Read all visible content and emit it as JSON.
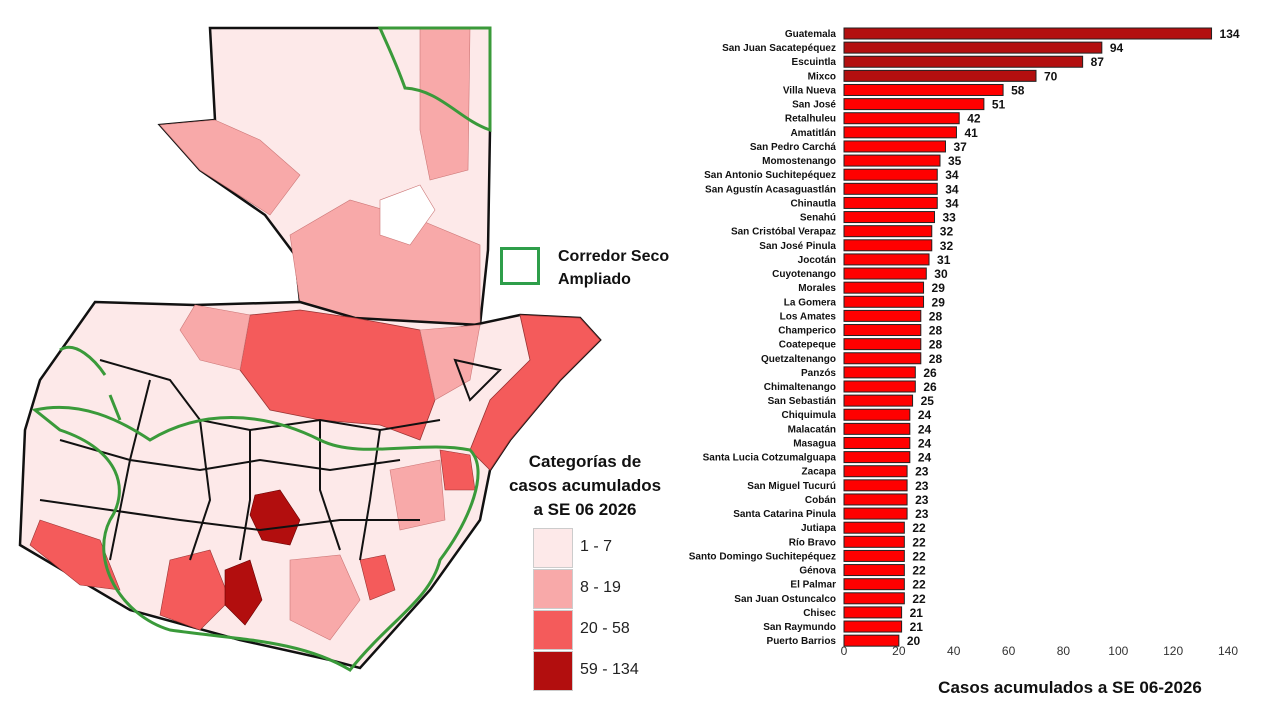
{
  "map": {
    "corridor_label_line1": "Corredor Seco",
    "corridor_label_line2": "Ampliado",
    "legend_title_line1": "Categorías de",
    "legend_title_line2": "casos acumulados",
    "legend_title_line3": "a SE 06 2026",
    "legend": [
      {
        "label": "1 - 7",
        "color": "#fde9e9"
      },
      {
        "label": "8 - 19",
        "color": "#f8a9a9"
      },
      {
        "label": "20 - 58",
        "color": "#f45b5b"
      },
      {
        "label": "59 - 134",
        "color": "#b20e0e"
      }
    ],
    "corridor_color": "#3a9a3a"
  },
  "chart_data": {
    "type": "bar",
    "orientation": "horizontal",
    "title": "",
    "xlabel": "Casos acumulados a SE 06-2026",
    "ylabel": "",
    "xlim": [
      0,
      140
    ],
    "xticks": [
      0,
      20,
      40,
      60,
      80,
      100,
      120,
      140
    ],
    "grid": false,
    "colors": {
      "high": "#b30f0f",
      "mid": "#ff0000"
    },
    "color_threshold": 59,
    "categories": [
      "Guatemala",
      "San Juan Sacatepéquez",
      "Escuintla",
      "Mixco",
      "Villa Nueva",
      "San José",
      "Retalhuleu",
      "Amatitlán",
      "San Pedro Carchá",
      "Momostenango",
      "San Antonio Suchitepéquez",
      "San Agustín Acasaguastlán",
      "Chinautla",
      "Senahú",
      "San Cristóbal Verapaz",
      "San José Pinula",
      "Jocotán",
      "Cuyotenango",
      "Morales",
      "La Gomera",
      "Los Amates",
      "Champerico",
      "Coatepeque",
      "Quetzaltenango",
      "Panzós",
      "Chimaltenango",
      "San Sebastián",
      "Chiquimula",
      "Malacatán",
      "Masagua",
      "Santa Lucia Cotzumalguapa",
      "Zacapa",
      "San Miguel Tucurú",
      "Cobán",
      "Santa Catarina Pinula",
      "Jutiapa",
      "Río Bravo",
      "Santo Domingo Suchitepéquez",
      "Génova",
      "El Palmar",
      "San Juan Ostuncalco",
      "Chisec",
      "San Raymundo",
      "Puerto Barrios"
    ],
    "values": [
      134,
      94,
      87,
      70,
      58,
      51,
      42,
      41,
      37,
      35,
      34,
      34,
      34,
      33,
      32,
      32,
      31,
      30,
      29,
      29,
      28,
      28,
      28,
      28,
      26,
      26,
      25,
      24,
      24,
      24,
      24,
      23,
      23,
      23,
      23,
      22,
      22,
      22,
      22,
      22,
      22,
      21,
      21,
      20
    ]
  }
}
